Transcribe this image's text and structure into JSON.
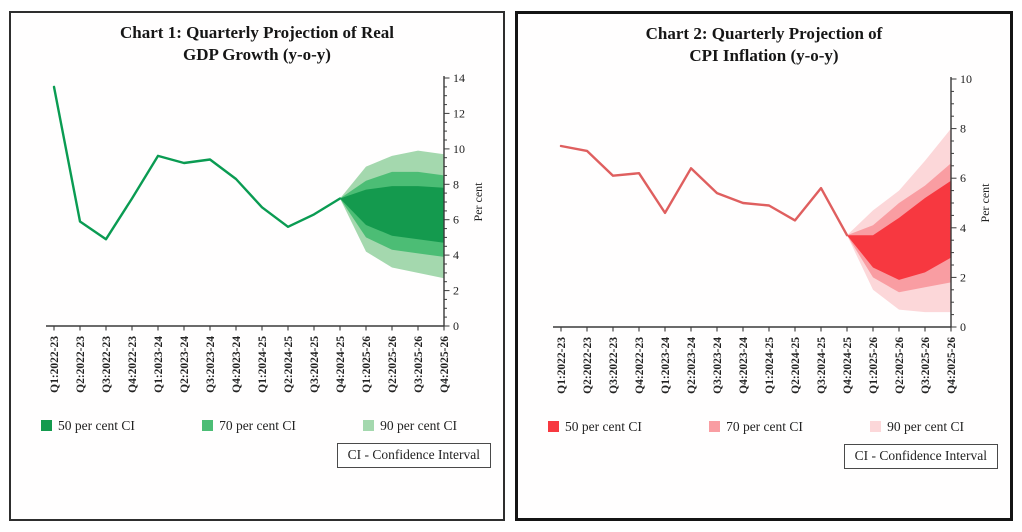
{
  "chart_data": [
    {
      "type": "line",
      "variant": "fan-chart",
      "title": "Chart 1: Quarterly Projection of Real GDP Growth (y-o-y)",
      "title_lines": [
        "Chart 1: Quarterly Projection of Real",
        "GDP Growth (y-o-y)"
      ],
      "ylabel": "Per cent",
      "ylim": [
        0,
        14
      ],
      "ytick_step": 2,
      "y_minor_step": 0.5,
      "grid": false,
      "legend_position": "bottom",
      "categories": [
        "Q1:2022-23",
        "Q2:2022-23",
        "Q3:2022-23",
        "Q4:2022-23",
        "Q1:2023-24",
        "Q2:2023-24",
        "Q3:2023-24",
        "Q4:2023-24",
        "Q1:2024-25",
        "Q2:2024-25",
        "Q3:2024-25",
        "Q4:2024-25",
        "Q1:2025-26",
        "Q2:2025-26",
        "Q3:2025-26",
        "Q4:2025-26"
      ],
      "line_values": [
        13.5,
        5.9,
        4.9,
        7.2,
        9.6,
        9.2,
        9.4,
        8.3,
        6.7,
        5.6,
        6.3,
        7.2
      ],
      "line_color": "#0a9b52",
      "fan_start_index": 11,
      "bands": {
        "ci50": {
          "label": "50 per cent CI",
          "color": "#149a4e",
          "low": [
            7.2,
            5.7,
            5.1,
            4.9,
            4.7
          ],
          "high": [
            7.2,
            7.7,
            7.9,
            7.9,
            7.8
          ]
        },
        "ci70": {
          "label": "70 per cent CI",
          "color": "#4cbd75",
          "low": [
            7.2,
            5.0,
            4.3,
            4.1,
            3.9
          ],
          "high": [
            7.2,
            8.2,
            8.7,
            8.7,
            8.5
          ]
        },
        "ci90": {
          "label": "90 per cent CI",
          "color": "#a4d8ae",
          "low": [
            7.2,
            4.2,
            3.3,
            3.0,
            2.7
          ],
          "high": [
            7.2,
            9.0,
            9.6,
            9.9,
            9.7
          ]
        }
      },
      "ci_note": "CI - Confidence Interval"
    },
    {
      "type": "line",
      "variant": "fan-chart",
      "title": "Chart 2: Quarterly Projection of CPI Inflation (y-o-y)",
      "title_lines": [
        "Chart 2: Quarterly Projection of",
        "CPI Inflation (y-o-y)"
      ],
      "ylabel": "Per cent",
      "ylim": [
        0,
        10
      ],
      "ytick_step": 2,
      "y_minor_step": 0.5,
      "grid": false,
      "legend_position": "bottom",
      "categories": [
        "Q1:2022-23",
        "Q2:2022-23",
        "Q3:2022-23",
        "Q4:2022-23",
        "Q1:2023-24",
        "Q2:2023-24",
        "Q3:2023-24",
        "Q4:2023-24",
        "Q1:2024-25",
        "Q2:2024-25",
        "Q3:2024-25",
        "Q4:2024-25",
        "Q1:2025-26",
        "Q2:2025-26",
        "Q3:2025-26",
        "Q4:2025-26"
      ],
      "line_values": [
        7.3,
        7.1,
        6.1,
        6.2,
        4.6,
        6.4,
        5.4,
        5.0,
        4.9,
        4.3,
        5.6,
        3.7
      ],
      "line_color": "#df5f5f",
      "fan_start_index": 11,
      "bands": {
        "ci50": {
          "label": "50 per cent CI",
          "color": "#f73840",
          "low": [
            3.7,
            2.4,
            1.9,
            2.2,
            2.8
          ],
          "high": [
            3.7,
            3.7,
            4.4,
            5.2,
            5.9
          ]
        },
        "ci70": {
          "label": "70 per cent CI",
          "color": "#f99da2",
          "low": [
            3.7,
            2.0,
            1.4,
            1.6,
            1.8
          ],
          "high": [
            3.7,
            4.1,
            5.0,
            5.7,
            6.6
          ]
        },
        "ci90": {
          "label": "90 per cent CI",
          "color": "#fcd7d9",
          "low": [
            3.7,
            1.5,
            0.7,
            0.6,
            0.6
          ],
          "high": [
            3.7,
            4.7,
            5.5,
            6.7,
            8.0
          ]
        }
      },
      "ci_note": "CI - Confidence Interval"
    }
  ]
}
